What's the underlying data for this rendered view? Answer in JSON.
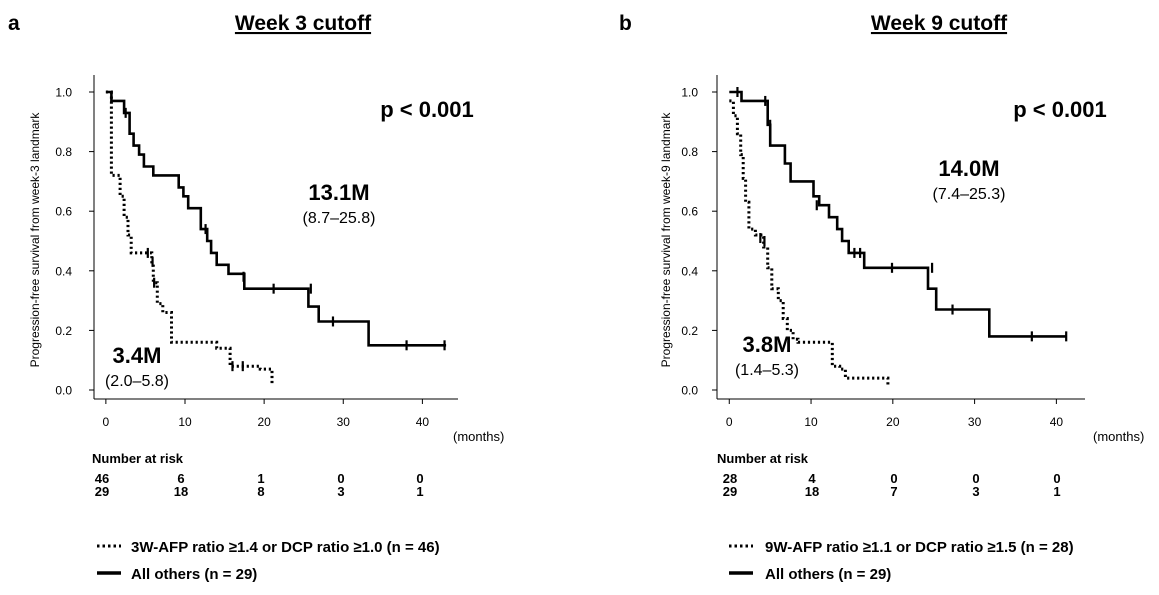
{
  "panels": [
    {
      "panel_label": "a",
      "title": "Week 3 cutoff",
      "y_axis_label": "Progression-free survival from week-3 landmark",
      "x_unit": "(months)",
      "p_value": "p < 0.001",
      "solid_median": "13.1M",
      "solid_ci": "(8.7–25.8)",
      "dotted_median": "3.4M",
      "dotted_ci": "(2.0–5.8)",
      "risk_title": "Number at risk",
      "risk_dotted": [
        "46",
        "6",
        "1",
        "0",
        "0"
      ],
      "risk_solid": [
        "29",
        "18",
        "8",
        "3",
        "1"
      ],
      "legend_dotted": "3W-AFP ratio ≥1.4 or DCP ratio ≥1.0 (n = 46)",
      "legend_solid": "All others (n = 29)"
    },
    {
      "panel_label": "b",
      "title": "Week 9 cutoff",
      "y_axis_label": "Progression-free survival from week-9 landmark",
      "x_unit": "(months)",
      "p_value": "p < 0.001",
      "solid_median": "14.0M",
      "solid_ci": "(7.4–25.3)",
      "dotted_median": "3.8M",
      "dotted_ci": "(1.4–5.3)",
      "risk_title": "Number at risk",
      "risk_dotted": [
        "28",
        "4",
        "0",
        "0",
        "0"
      ],
      "risk_solid": [
        "29",
        "18",
        "7",
        "3",
        "1"
      ],
      "legend_dotted": "9W-AFP ratio ≥1.1 or DCP ratio ≥1.5 (n = 28)",
      "legend_solid": "All others (n = 29)"
    }
  ],
  "chart_data": [
    {
      "type": "line",
      "title": "Week 3 cutoff",
      "xlabel": "(months)",
      "ylabel": "Progression-free survival from week-3 landmark",
      "xlim": [
        -1.5,
        44.5
      ],
      "ylim": [
        0,
        1
      ],
      "xticks": [
        0,
        10,
        20,
        30,
        40
      ],
      "yticks": [
        "0.0",
        "0.2",
        "0.4",
        "0.6",
        "0.8",
        "1.0"
      ],
      "series": [
        {
          "name": "3W-AFP ratio ≥1.4 or DCP ratio ≥1.0 (n = 46)",
          "style": "dotted",
          "steps": [
            [
              0,
              1.0
            ],
            [
              0.7,
              0.72
            ],
            [
              1.8,
              0.65
            ],
            [
              2.3,
              0.58
            ],
            [
              2.8,
              0.52
            ],
            [
              3.2,
              0.46
            ],
            [
              5.8,
              0.43
            ],
            [
              6.0,
              0.36
            ],
            [
              6.5,
              0.29
            ],
            [
              7.2,
              0.26
            ],
            [
              8.3,
              0.16
            ],
            [
              14.0,
              0.14
            ],
            [
              15.7,
              0.08
            ],
            [
              19.5,
              0.07
            ],
            [
              21.0,
              0.02
            ]
          ],
          "censor": [
            [
              5.3,
              0.46
            ],
            [
              5.9,
              0.43
            ],
            [
              6.1,
              0.36
            ],
            [
              16.0,
              0.08
            ],
            [
              17.3,
              0.08
            ]
          ]
        },
        {
          "name": "All others (n = 29)",
          "style": "solid",
          "steps": [
            [
              0,
              1.0
            ],
            [
              0.7,
              0.97
            ],
            [
              2.3,
              0.93
            ],
            [
              3.0,
              0.86
            ],
            [
              3.5,
              0.82
            ],
            [
              4.2,
              0.79
            ],
            [
              4.8,
              0.75
            ],
            [
              6.0,
              0.72
            ],
            [
              9.2,
              0.68
            ],
            [
              9.8,
              0.65
            ],
            [
              10.4,
              0.61
            ],
            [
              12.0,
              0.54
            ],
            [
              12.8,
              0.5
            ],
            [
              13.3,
              0.46
            ],
            [
              14.0,
              0.42
            ],
            [
              15.5,
              0.39
            ],
            [
              17.5,
              0.34
            ],
            [
              25.6,
              0.28
            ],
            [
              26.9,
              0.23
            ],
            [
              33.2,
              0.15
            ],
            [
              43.0,
              0.15
            ]
          ],
          "censor": [
            [
              2.5,
              0.93
            ],
            [
              12.6,
              0.54
            ],
            [
              17.4,
              0.38
            ],
            [
              21.2,
              0.34
            ],
            [
              25.9,
              0.34
            ],
            [
              28.7,
              0.23
            ],
            [
              38.0,
              0.15
            ],
            [
              42.8,
              0.15
            ]
          ]
        }
      ]
    },
    {
      "type": "line",
      "title": "Week 9 cutoff",
      "xlabel": "(months)",
      "ylabel": "Progression-free survival from week-9 landmark",
      "xlim": [
        -1.5,
        43.5
      ],
      "ylim": [
        0,
        1
      ],
      "xticks": [
        0,
        10,
        20,
        30,
        40
      ],
      "yticks": [
        "0.0",
        "0.2",
        "0.4",
        "0.6",
        "0.8",
        "1.0"
      ],
      "series": [
        {
          "name": "9W-AFP ratio ≥1.1 or DCP ratio ≥1.5 (n = 28)",
          "style": "dotted",
          "steps": [
            [
              0,
              0.97
            ],
            [
              0.5,
              0.92
            ],
            [
              1.0,
              0.86
            ],
            [
              1.4,
              0.79
            ],
            [
              1.7,
              0.71
            ],
            [
              2.0,
              0.63
            ],
            [
              2.4,
              0.54
            ],
            [
              3.2,
              0.52
            ],
            [
              4.2,
              0.48
            ],
            [
              4.7,
              0.41
            ],
            [
              5.2,
              0.34
            ],
            [
              6.0,
              0.3
            ],
            [
              6.6,
              0.24
            ],
            [
              7.1,
              0.2
            ],
            [
              7.8,
              0.17
            ],
            [
              8.4,
              0.16
            ],
            [
              12.6,
              0.08
            ],
            [
              13.5,
              0.07
            ],
            [
              14.2,
              0.04
            ],
            [
              19.4,
              0.01
            ]
          ],
          "censor": [
            [
              3.8,
              0.51
            ],
            [
              4.3,
              0.5
            ]
          ]
        },
        {
          "name": "All others (n = 29)",
          "style": "solid",
          "steps": [
            [
              0,
              1.0
            ],
            [
              1.5,
              0.97
            ],
            [
              4.7,
              0.89
            ],
            [
              5.0,
              0.82
            ],
            [
              6.8,
              0.76
            ],
            [
              7.5,
              0.7
            ],
            [
              10.3,
              0.65
            ],
            [
              11.0,
              0.62
            ],
            [
              12.2,
              0.58
            ],
            [
              13.2,
              0.54
            ],
            [
              13.8,
              0.5
            ],
            [
              14.6,
              0.46
            ],
            [
              16.5,
              0.41
            ],
            [
              24.3,
              0.34
            ],
            [
              25.3,
              0.27
            ],
            [
              31.8,
              0.18
            ],
            [
              41.3,
              0.18
            ]
          ],
          "censor": [
            [
              1.0,
              1.0
            ],
            [
              4.4,
              0.97
            ],
            [
              5.0,
              0.89
            ],
            [
              10.7,
              0.62
            ],
            [
              15.3,
              0.46
            ],
            [
              16.0,
              0.46
            ],
            [
              19.9,
              0.41
            ],
            [
              24.8,
              0.41
            ],
            [
              27.3,
              0.27
            ],
            [
              37.0,
              0.18
            ],
            [
              41.2,
              0.18
            ]
          ]
        }
      ]
    }
  ]
}
